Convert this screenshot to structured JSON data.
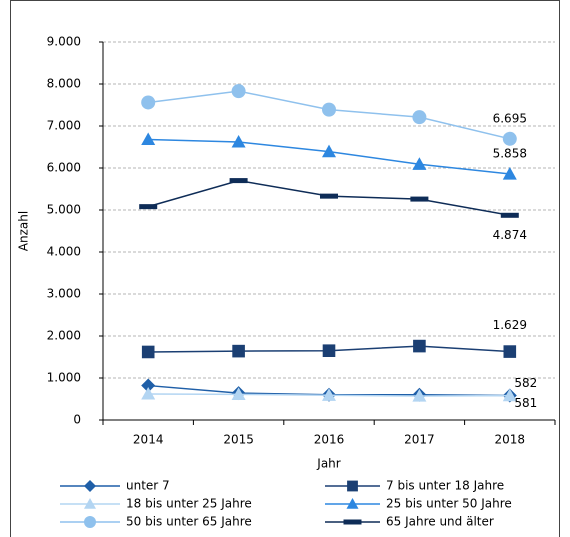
{
  "chart_data": {
    "type": "line",
    "x_label": "Jahr",
    "y_label": "Anzahl",
    "categories": [
      "2014",
      "2015",
      "2016",
      "2017",
      "2018"
    ],
    "ylim": [
      0,
      9000
    ],
    "yticks": [
      {
        "value": 0,
        "label": "0"
      },
      {
        "value": 1000,
        "label": "1.000"
      },
      {
        "value": 2000,
        "label": "2.000"
      },
      {
        "value": 3000,
        "label": "3.000"
      },
      {
        "value": 4000,
        "label": "4.000"
      },
      {
        "value": 5000,
        "label": "5.000"
      },
      {
        "value": 6000,
        "label": "6.000"
      },
      {
        "value": 7000,
        "label": "7.000"
      },
      {
        "value": 8000,
        "label": "8.000"
      },
      {
        "value": 9000,
        "label": "9.000"
      }
    ],
    "grid": true,
    "series": [
      {
        "name": "unter 7",
        "color": "#1f5fa8",
        "marker": "diamond",
        "values": [
          820,
          640,
          600,
          600,
          582
        ],
        "value_labels": [
          null,
          null,
          null,
          null,
          "582"
        ]
      },
      {
        "name": "7 bis unter 18 Jahre",
        "color": "#1b3f73",
        "marker": "square",
        "values": [
          1620,
          1640,
          1650,
          1760,
          1629
        ],
        "value_labels": [
          null,
          null,
          null,
          null,
          "1.629"
        ]
      },
      {
        "name": "18 bis unter 25 Jahre",
        "color": "#b3d5f2",
        "marker": "triangle",
        "values": [
          620,
          610,
          590,
          570,
          581
        ],
        "value_labels": [
          null,
          null,
          null,
          null,
          "581"
        ]
      },
      {
        "name": "25 bis unter 50 Jahre",
        "color": "#2d87e0",
        "marker": "triangle",
        "values": [
          6680,
          6620,
          6390,
          6090,
          5858
        ],
        "value_labels": [
          null,
          null,
          null,
          null,
          "5.858"
        ]
      },
      {
        "name": "50 bis unter 65 Jahre",
        "color": "#8fc1ed",
        "marker": "circle",
        "values": [
          7560,
          7830,
          7390,
          7210,
          6695
        ],
        "value_labels": [
          null,
          null,
          null,
          null,
          "6.695"
        ]
      },
      {
        "name": "65 Jahre und älter",
        "color": "#0e2c57",
        "marker": "dash",
        "values": [
          5080,
          5700,
          5330,
          5260,
          4874
        ],
        "value_labels": [
          null,
          null,
          null,
          null,
          "4.874"
        ]
      }
    ]
  }
}
